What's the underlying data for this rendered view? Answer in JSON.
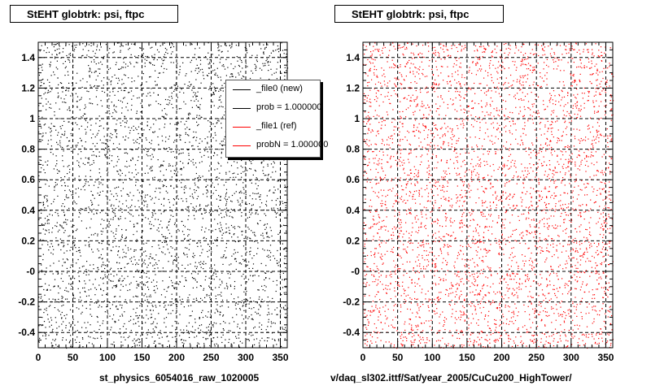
{
  "chart_data": [
    {
      "type": "scatter",
      "title": "StEHT globtrk: psi, ftpc",
      "xlabel": "",
      "ylabel": "",
      "xlim": [
        0,
        360
      ],
      "ylim": [
        -0.5,
        1.5
      ],
      "xticks": [
        0,
        50,
        100,
        150,
        200,
        250,
        300,
        350
      ],
      "yticks": [
        -0.4,
        -0.2,
        0,
        0.2,
        0.4,
        0.6,
        0.8,
        1,
        1.2,
        1.4
      ],
      "ytick_labels": [
        "-0.4",
        "-0.2",
        "-0",
        "0.2",
        "0.4",
        "0.6",
        "0.8",
        "1",
        "1.2",
        "1.4"
      ],
      "grid": true,
      "point_color": "#000000",
      "distribution": "uniform",
      "footer": "st_physics_6054016_raw_1020005",
      "legend": {
        "placement": "top-right",
        "entries": [
          {
            "label": "_file0 (new)",
            "color": "#000000"
          },
          {
            "label": "prob = 1.000000",
            "color": "#000000"
          },
          {
            "label": "_file1 (ref)",
            "color": "#ff0000"
          },
          {
            "label": "probN = 1.000000",
            "color": "#ff0000"
          }
        ]
      }
    },
    {
      "type": "scatter",
      "title": "StEHT globtrk: psi, ftpc",
      "xlabel": "",
      "ylabel": "",
      "xlim": [
        0,
        360
      ],
      "ylim": [
        -0.5,
        1.5
      ],
      "xticks": [
        0,
        50,
        100,
        150,
        200,
        250,
        300,
        350
      ],
      "yticks": [
        -0.4,
        -0.2,
        0,
        0.2,
        0.4,
        0.6,
        0.8,
        1,
        1.2,
        1.4
      ],
      "ytick_labels": [
        "-0.4",
        "-0.2",
        "-0",
        "0.2",
        "0.4",
        "0.6",
        "0.8",
        "1",
        "1.2",
        "1.4"
      ],
      "grid": true,
      "point_color": "#ff0000",
      "distribution": "uniform",
      "footer": "v/daq_sl302.ittf/Sat/year_2005/CuCu200_HighTower/"
    }
  ]
}
